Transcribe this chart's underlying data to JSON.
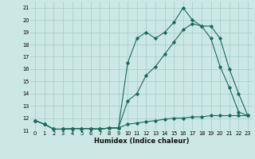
{
  "xlabel": "Humidex (Indice chaleur)",
  "bg_color": "#cce8e4",
  "grid_color": "#aacfca",
  "line_color": "#1a6b5a",
  "xlim": [
    -0.5,
    23.5
  ],
  "ylim": [
    11,
    21.5
  ],
  "xticks": [
    0,
    1,
    2,
    3,
    4,
    5,
    6,
    7,
    8,
    9,
    10,
    11,
    12,
    13,
    14,
    15,
    16,
    17,
    18,
    19,
    20,
    21,
    22,
    23
  ],
  "yticks": [
    11,
    12,
    13,
    14,
    15,
    16,
    17,
    18,
    19,
    20,
    21
  ],
  "series1_x": [
    0,
    1,
    2,
    3,
    4,
    5,
    6,
    7,
    8,
    9,
    10,
    11,
    12,
    13,
    14,
    15,
    16,
    17,
    18,
    19,
    20,
    21,
    22,
    23
  ],
  "series1_y": [
    11.8,
    11.5,
    11.1,
    11.1,
    11.15,
    11.15,
    11.15,
    11.1,
    11.2,
    11.2,
    16.5,
    18.5,
    19.0,
    18.5,
    19.0,
    19.8,
    21.0,
    20.0,
    19.5,
    19.5,
    18.5,
    16.0,
    14.0,
    12.2
  ],
  "series2_x": [
    0,
    1,
    2,
    3,
    4,
    5,
    6,
    7,
    8,
    9,
    10,
    11,
    12,
    13,
    14,
    15,
    16,
    17,
    18,
    19,
    20,
    21,
    22,
    23
  ],
  "series2_y": [
    11.8,
    11.5,
    11.1,
    11.1,
    11.15,
    11.15,
    11.15,
    11.1,
    11.2,
    11.2,
    13.4,
    14.0,
    15.5,
    16.2,
    17.2,
    18.2,
    19.2,
    19.7,
    19.5,
    18.5,
    16.2,
    14.5,
    12.5,
    12.2
  ],
  "series3_x": [
    0,
    1,
    2,
    3,
    4,
    5,
    6,
    7,
    8,
    9,
    10,
    11,
    12,
    13,
    14,
    15,
    16,
    17,
    18,
    19,
    20,
    21,
    22,
    23
  ],
  "series3_y": [
    11.8,
    11.5,
    11.1,
    11.1,
    11.15,
    11.15,
    11.15,
    11.1,
    11.2,
    11.2,
    11.5,
    11.6,
    11.7,
    11.8,
    11.9,
    12.0,
    12.0,
    12.1,
    12.1,
    12.2,
    12.2,
    12.2,
    12.2,
    12.2
  ],
  "xlabel_fontsize": 6.0,
  "tick_fontsize": 4.8
}
